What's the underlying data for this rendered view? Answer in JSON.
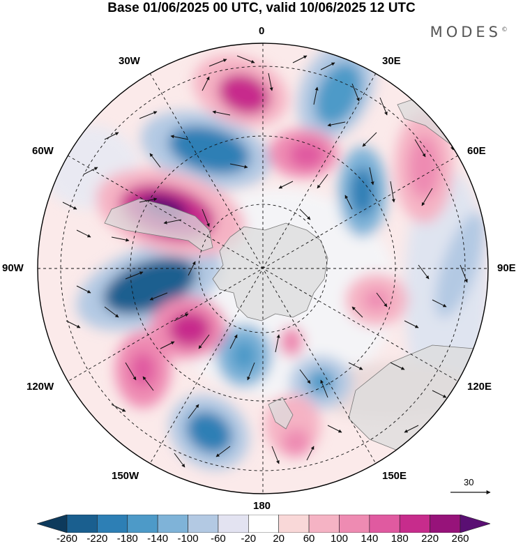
{
  "title": "Base 01/06/2025 00 UTC, valid 10/06/2025 12 UTC",
  "brand": "MODES",
  "brand_mark": "©",
  "longitude_labels": {
    "top": "0",
    "top_right": "30E",
    "right_upper": "60E",
    "right": "90E",
    "right_lower": "120E",
    "bottom_right": "150E",
    "bottom": "180",
    "bottom_left": "150W",
    "left_lower": "120W",
    "left": "90W",
    "left_upper": "60W",
    "top_left": "30W"
  },
  "reference_vector": "30",
  "colorbar": {
    "ticks": [
      "-260",
      "-220",
      "-180",
      "-140",
      "-100",
      "-60",
      "-20",
      "20",
      "60",
      "100",
      "140",
      "180",
      "220",
      "260"
    ],
    "colors": [
      "#0d3a5c",
      "#1a5f8f",
      "#2d7fb5",
      "#4d9ac8",
      "#7fb3d8",
      "#b3c9e3",
      "#e3e3f1",
      "#ffffff",
      "#f9d8d8",
      "#f5b3c4",
      "#ee8bb2",
      "#e05aa0",
      "#c72c8c",
      "#97137a",
      "#5a0f73"
    ]
  },
  "map": {
    "projection": "polar stereographic, south pole centered",
    "land_color": "#e2e2e2",
    "field": "anomaly (shaded) with wind vectors"
  }
}
